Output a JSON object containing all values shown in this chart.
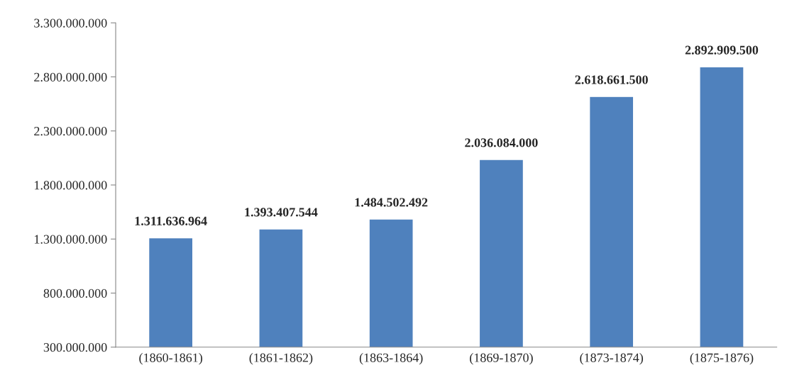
{
  "chart_data": {
    "type": "bar",
    "categories": [
      "(1860-1861)",
      "(1861-1862)",
      "(1863-1864)",
      "(1869-1870)",
      "(1873-1874)",
      "(1875-1876)"
    ],
    "values": [
      1311636964,
      1393407544,
      1484502492,
      2036084000,
      2618661500,
      2892909500
    ],
    "value_labels": [
      "1.311.636.964",
      "1.393.407.544",
      "1.484.502.492",
      "2.036.084.000",
      "2.618.661.500",
      "2.892.909.500"
    ],
    "color": "#4f81bd",
    "ylim": [
      300000000,
      3300000000
    ],
    "yticks": [
      {
        "value": 300000000,
        "label": "300.000.000"
      },
      {
        "value": 800000000,
        "label": "800.000.000"
      },
      {
        "value": 1300000000,
        "label": "1.300.000.000"
      },
      {
        "value": 1800000000,
        "label": "1.800.000.000"
      },
      {
        "value": 2300000000,
        "label": "2.300.000.000"
      },
      {
        "value": 2800000000,
        "label": "2.800.000.000"
      },
      {
        "value": 3300000000,
        "label": "3.300.000.000"
      }
    ],
    "grid": false,
    "legend": false
  }
}
